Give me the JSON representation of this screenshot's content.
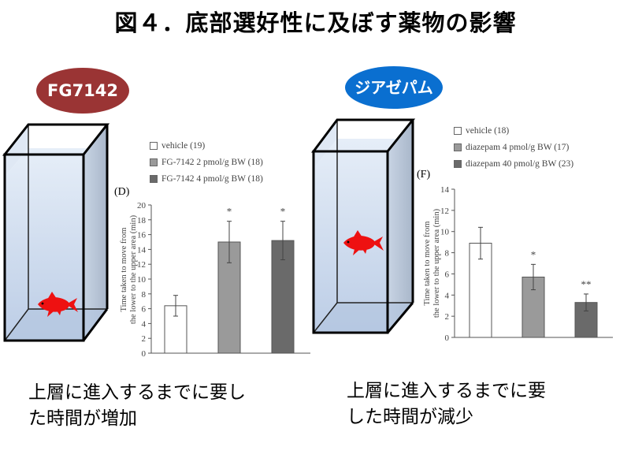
{
  "title": "図４．底部選好性に及ぼす薬物の影響",
  "left_panel": {
    "badge": "FG7142",
    "badge_color": "#9a3434",
    "caption_lines": [
      "上層に進入するまでに要し",
      "た時間が増加"
    ]
  },
  "right_panel": {
    "badge": "ジアゼパム",
    "badge_color": "#0a6fd0",
    "caption_lines": [
      "上層に進入するまでに要",
      "した時間が減少"
    ]
  },
  "chart_data": [
    {
      "type": "bar",
      "panel_label": "(D)",
      "categories": [
        "vehicle (19)",
        "FG-7142 2 pmol/g BW (18)",
        "FG-7142 4 pmol/g BW (18)"
      ],
      "values": [
        6.4,
        15.0,
        15.2
      ],
      "errors": [
        1.4,
        2.8,
        2.6
      ],
      "significance": [
        "",
        "*",
        "*"
      ],
      "colors": [
        "#ffffff",
        "#9a9a9a",
        "#6a6a6a"
      ],
      "ylabel_lines": [
        "Time taken to move from",
        "the lower to the upper area (min)"
      ],
      "ylim": [
        0,
        20
      ],
      "yticks": [
        0,
        2,
        4,
        6,
        8,
        10,
        12,
        14,
        16,
        18,
        20
      ]
    },
    {
      "type": "bar",
      "panel_label": "(F)",
      "categories": [
        "vehicle (18)",
        "diazepam 4 pmol/g BW (17)",
        "diazepam 40 pmol/g BW (23)"
      ],
      "values": [
        8.9,
        5.7,
        3.3
      ],
      "errors": [
        1.5,
        1.2,
        0.8
      ],
      "significance": [
        "",
        "*",
        "**"
      ],
      "colors": [
        "#ffffff",
        "#9a9a9a",
        "#6a6a6a"
      ],
      "ylabel_lines": [
        "Time taken to move from",
        "the lower to the upper area (min)"
      ],
      "ylim": [
        0,
        14
      ],
      "yticks": [
        0,
        2,
        4,
        6,
        8,
        10,
        12,
        14
      ]
    }
  ]
}
